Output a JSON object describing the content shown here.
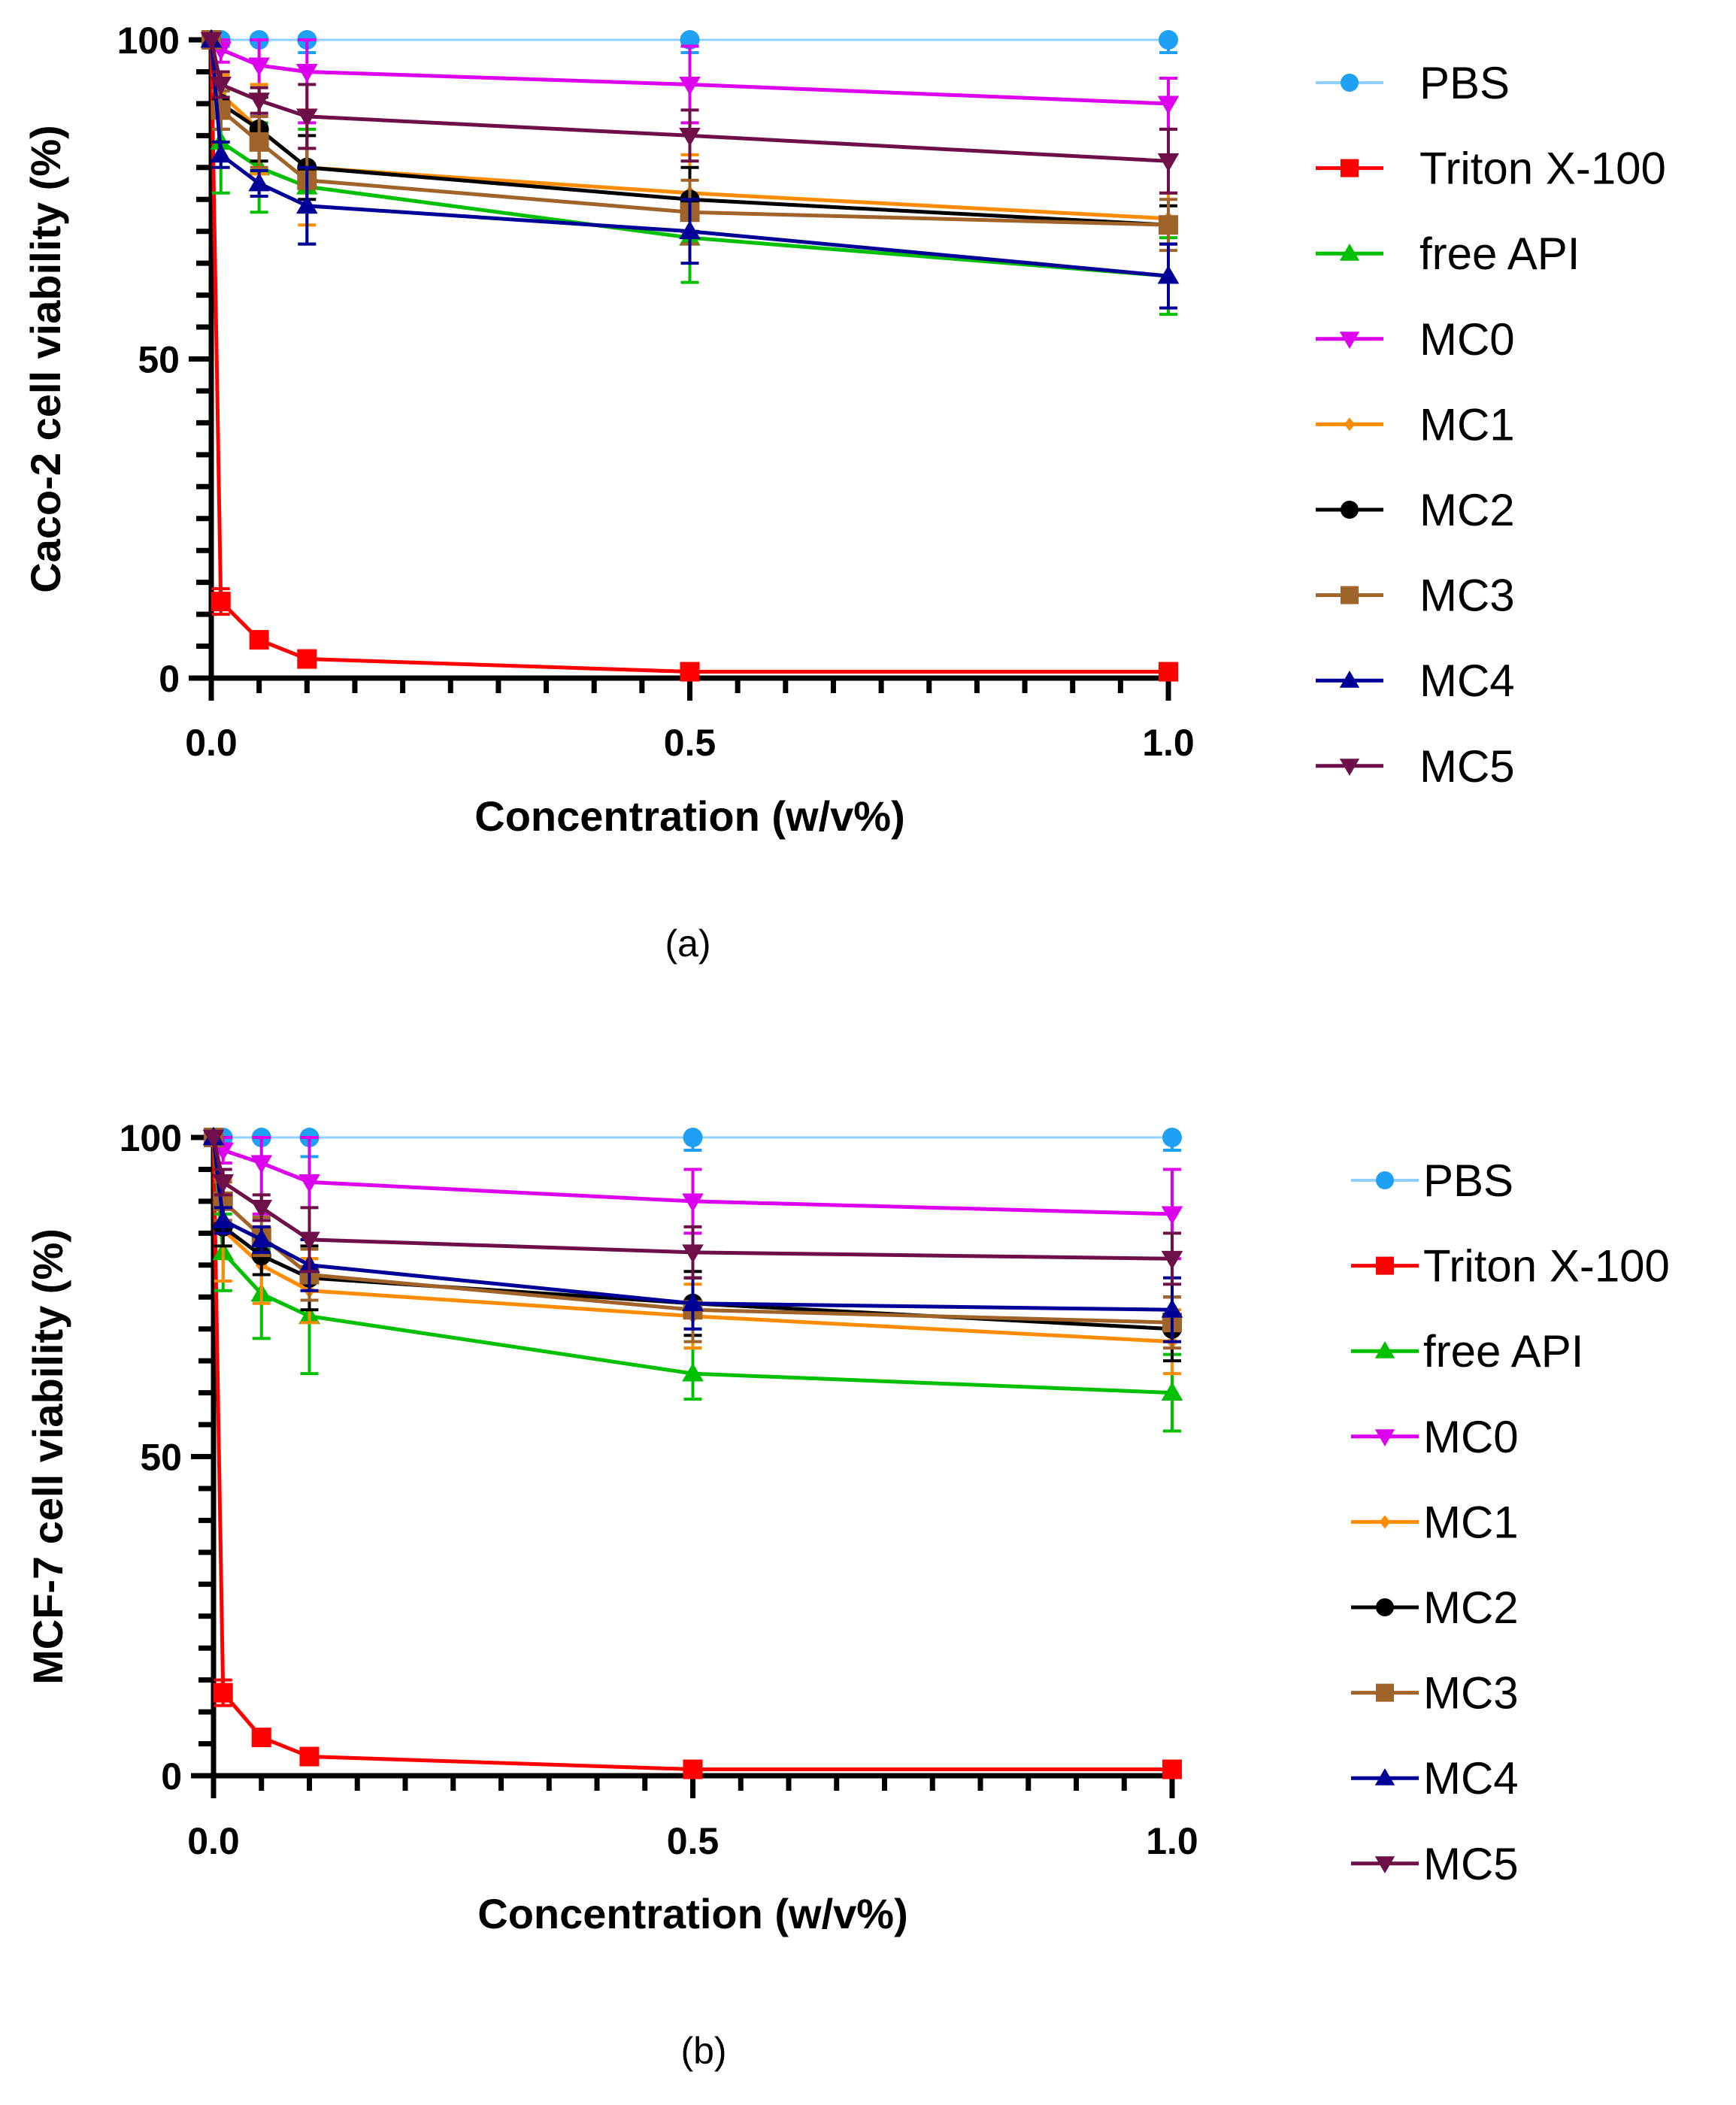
{
  "chart_data": [
    {
      "type": "line",
      "panel_label": "(a)",
      "xlabel": "Concentration (w/v%)",
      "ylabel": "Caco-2 cell viability (%)",
      "xlim": [
        0,
        1.0
      ],
      "ylim": [
        0,
        100
      ],
      "x_ticks": [
        "0.0",
        "0.5",
        "1.0"
      ],
      "y_ticks": [
        "0",
        "50",
        "100"
      ],
      "grid": false,
      "legend_position": "right",
      "x": [
        0,
        0.01,
        0.05,
        0.1,
        0.5,
        1.0
      ],
      "series": [
        {
          "name": "PBS",
          "marker": "circle",
          "color": "#1ea0f5",
          "line_color": "#8fd0ff",
          "values": [
            100,
            100,
            100,
            100,
            100,
            100
          ],
          "errors": [
            0,
            1,
            0,
            2,
            2,
            2
          ]
        },
        {
          "name": "Triton X-100",
          "marker": "square",
          "color": "#ff0000",
          "line_color": "#ff0000",
          "values": [
            100,
            12,
            6,
            3,
            1,
            1
          ],
          "errors": [
            1,
            2,
            1,
            1,
            0.5,
            0.5
          ]
        },
        {
          "name": "free API",
          "marker": "triangle-up",
          "color": "#00c000",
          "line_color": "#00c000",
          "values": [
            100,
            84,
            80,
            77,
            69,
            63
          ],
          "errors": [
            1,
            8,
            7,
            9,
            7,
            6
          ]
        },
        {
          "name": "MC0",
          "marker": "triangle-down",
          "color": "#dd00ee",
          "line_color": "#dd00ee",
          "values": [
            100,
            98.5,
            96,
            95,
            93,
            90
          ],
          "errors": [
            0,
            2,
            8,
            8,
            6,
            4
          ]
        },
        {
          "name": "MC1",
          "marker": "diamond",
          "color": "#ff8c00",
          "line_color": "#ff8c00",
          "values": [
            100,
            91.5,
            86,
            80,
            76,
            72
          ],
          "errors": [
            0,
            3,
            7,
            9,
            6,
            4
          ]
        },
        {
          "name": "MC2",
          "marker": "circle",
          "color": "#000000",
          "line_color": "#000000",
          "values": [
            100,
            90,
            86,
            80,
            75,
            71
          ],
          "errors": [
            0,
            4,
            5,
            5,
            5,
            3
          ]
        },
        {
          "name": "MC3",
          "marker": "square",
          "color": "#a0642a",
          "line_color": "#a0642a",
          "values": [
            100,
            89,
            84,
            78,
            73,
            71
          ],
          "errors": [
            0,
            3,
            4,
            5,
            5,
            4
          ]
        },
        {
          "name": "MC4",
          "marker": "triangle-up",
          "color": "#000099",
          "line_color": "#000099",
          "values": [
            100,
            82,
            77.5,
            74,
            70,
            63
          ],
          "errors": [
            0,
            2,
            2,
            6,
            5,
            5
          ]
        },
        {
          "name": "MC5",
          "marker": "triangle-down",
          "color": "#6e0f4a",
          "line_color": "#6e0f4a",
          "values": [
            100,
            93,
            90.5,
            88,
            85,
            81
          ],
          "errors": [
            0,
            2,
            2,
            5,
            4,
            5
          ]
        }
      ]
    },
    {
      "type": "line",
      "panel_label": "(b)",
      "xlabel": "Concentration (w/v%)",
      "ylabel": "MCF-7 cell viability (%)",
      "xlim": [
        0,
        1.0
      ],
      "ylim": [
        0,
        100
      ],
      "x_ticks": [
        "0.0",
        "0.5",
        "1.0"
      ],
      "y_ticks": [
        "0",
        "50",
        "100"
      ],
      "grid": false,
      "legend_position": "right",
      "x": [
        0,
        0.01,
        0.05,
        0.1,
        0.5,
        1.0
      ],
      "series": [
        {
          "name": "PBS",
          "marker": "circle",
          "color": "#1ea0f5",
          "line_color": "#8fd0ff",
          "values": [
            100,
            100,
            100,
            100,
            100,
            100
          ],
          "errors": [
            0,
            1,
            0,
            3,
            2,
            2
          ]
        },
        {
          "name": "Triton X-100",
          "marker": "square",
          "color": "#ff0000",
          "line_color": "#ff0000",
          "values": [
            100,
            13,
            6,
            3,
            1,
            1
          ],
          "errors": [
            1,
            2,
            1,
            1,
            0.5,
            0.5
          ]
        },
        {
          "name": "free API",
          "marker": "triangle-up",
          "color": "#00c000",
          "line_color": "#00c000",
          "values": [
            100,
            82,
            75.5,
            72,
            63,
            60
          ],
          "errors": [
            1,
            6,
            7,
            9,
            4,
            6
          ]
        },
        {
          "name": "MC0",
          "marker": "triangle-down",
          "color": "#dd00ee",
          "line_color": "#dd00ee",
          "values": [
            100,
            98,
            96,
            93,
            90,
            88
          ],
          "errors": [
            0,
            2,
            8,
            9,
            5,
            7
          ]
        },
        {
          "name": "MC1",
          "marker": "diamond",
          "color": "#ff8c00",
          "line_color": "#ff8c00",
          "values": [
            100,
            85.5,
            80,
            76,
            72,
            68
          ],
          "errors": [
            0,
            8,
            6,
            5,
            5,
            5
          ]
        },
        {
          "name": "MC2",
          "marker": "circle",
          "color": "#000000",
          "line_color": "#000000",
          "values": [
            100,
            86,
            81.5,
            78,
            74,
            70
          ],
          "errors": [
            0,
            3,
            3,
            5,
            5,
            5
          ]
        },
        {
          "name": "MC3",
          "marker": "square",
          "color": "#a0642a",
          "line_color": "#a0642a",
          "values": [
            100,
            90,
            84.5,
            78.5,
            73,
            71
          ],
          "errors": [
            0,
            3,
            3,
            4,
            5,
            4
          ]
        },
        {
          "name": "MC4",
          "marker": "triangle-up",
          "color": "#000099",
          "line_color": "#000099",
          "values": [
            100,
            87,
            84,
            80,
            74,
            73
          ],
          "errors": [
            0,
            2,
            2,
            4,
            4,
            5
          ]
        },
        {
          "name": "MC5",
          "marker": "triangle-down",
          "color": "#6e0f4a",
          "line_color": "#6e0f4a",
          "values": [
            100,
            93,
            89,
            84,
            82,
            81
          ],
          "errors": [
            0,
            2,
            2,
            5,
            4,
            4
          ]
        }
      ]
    }
  ]
}
